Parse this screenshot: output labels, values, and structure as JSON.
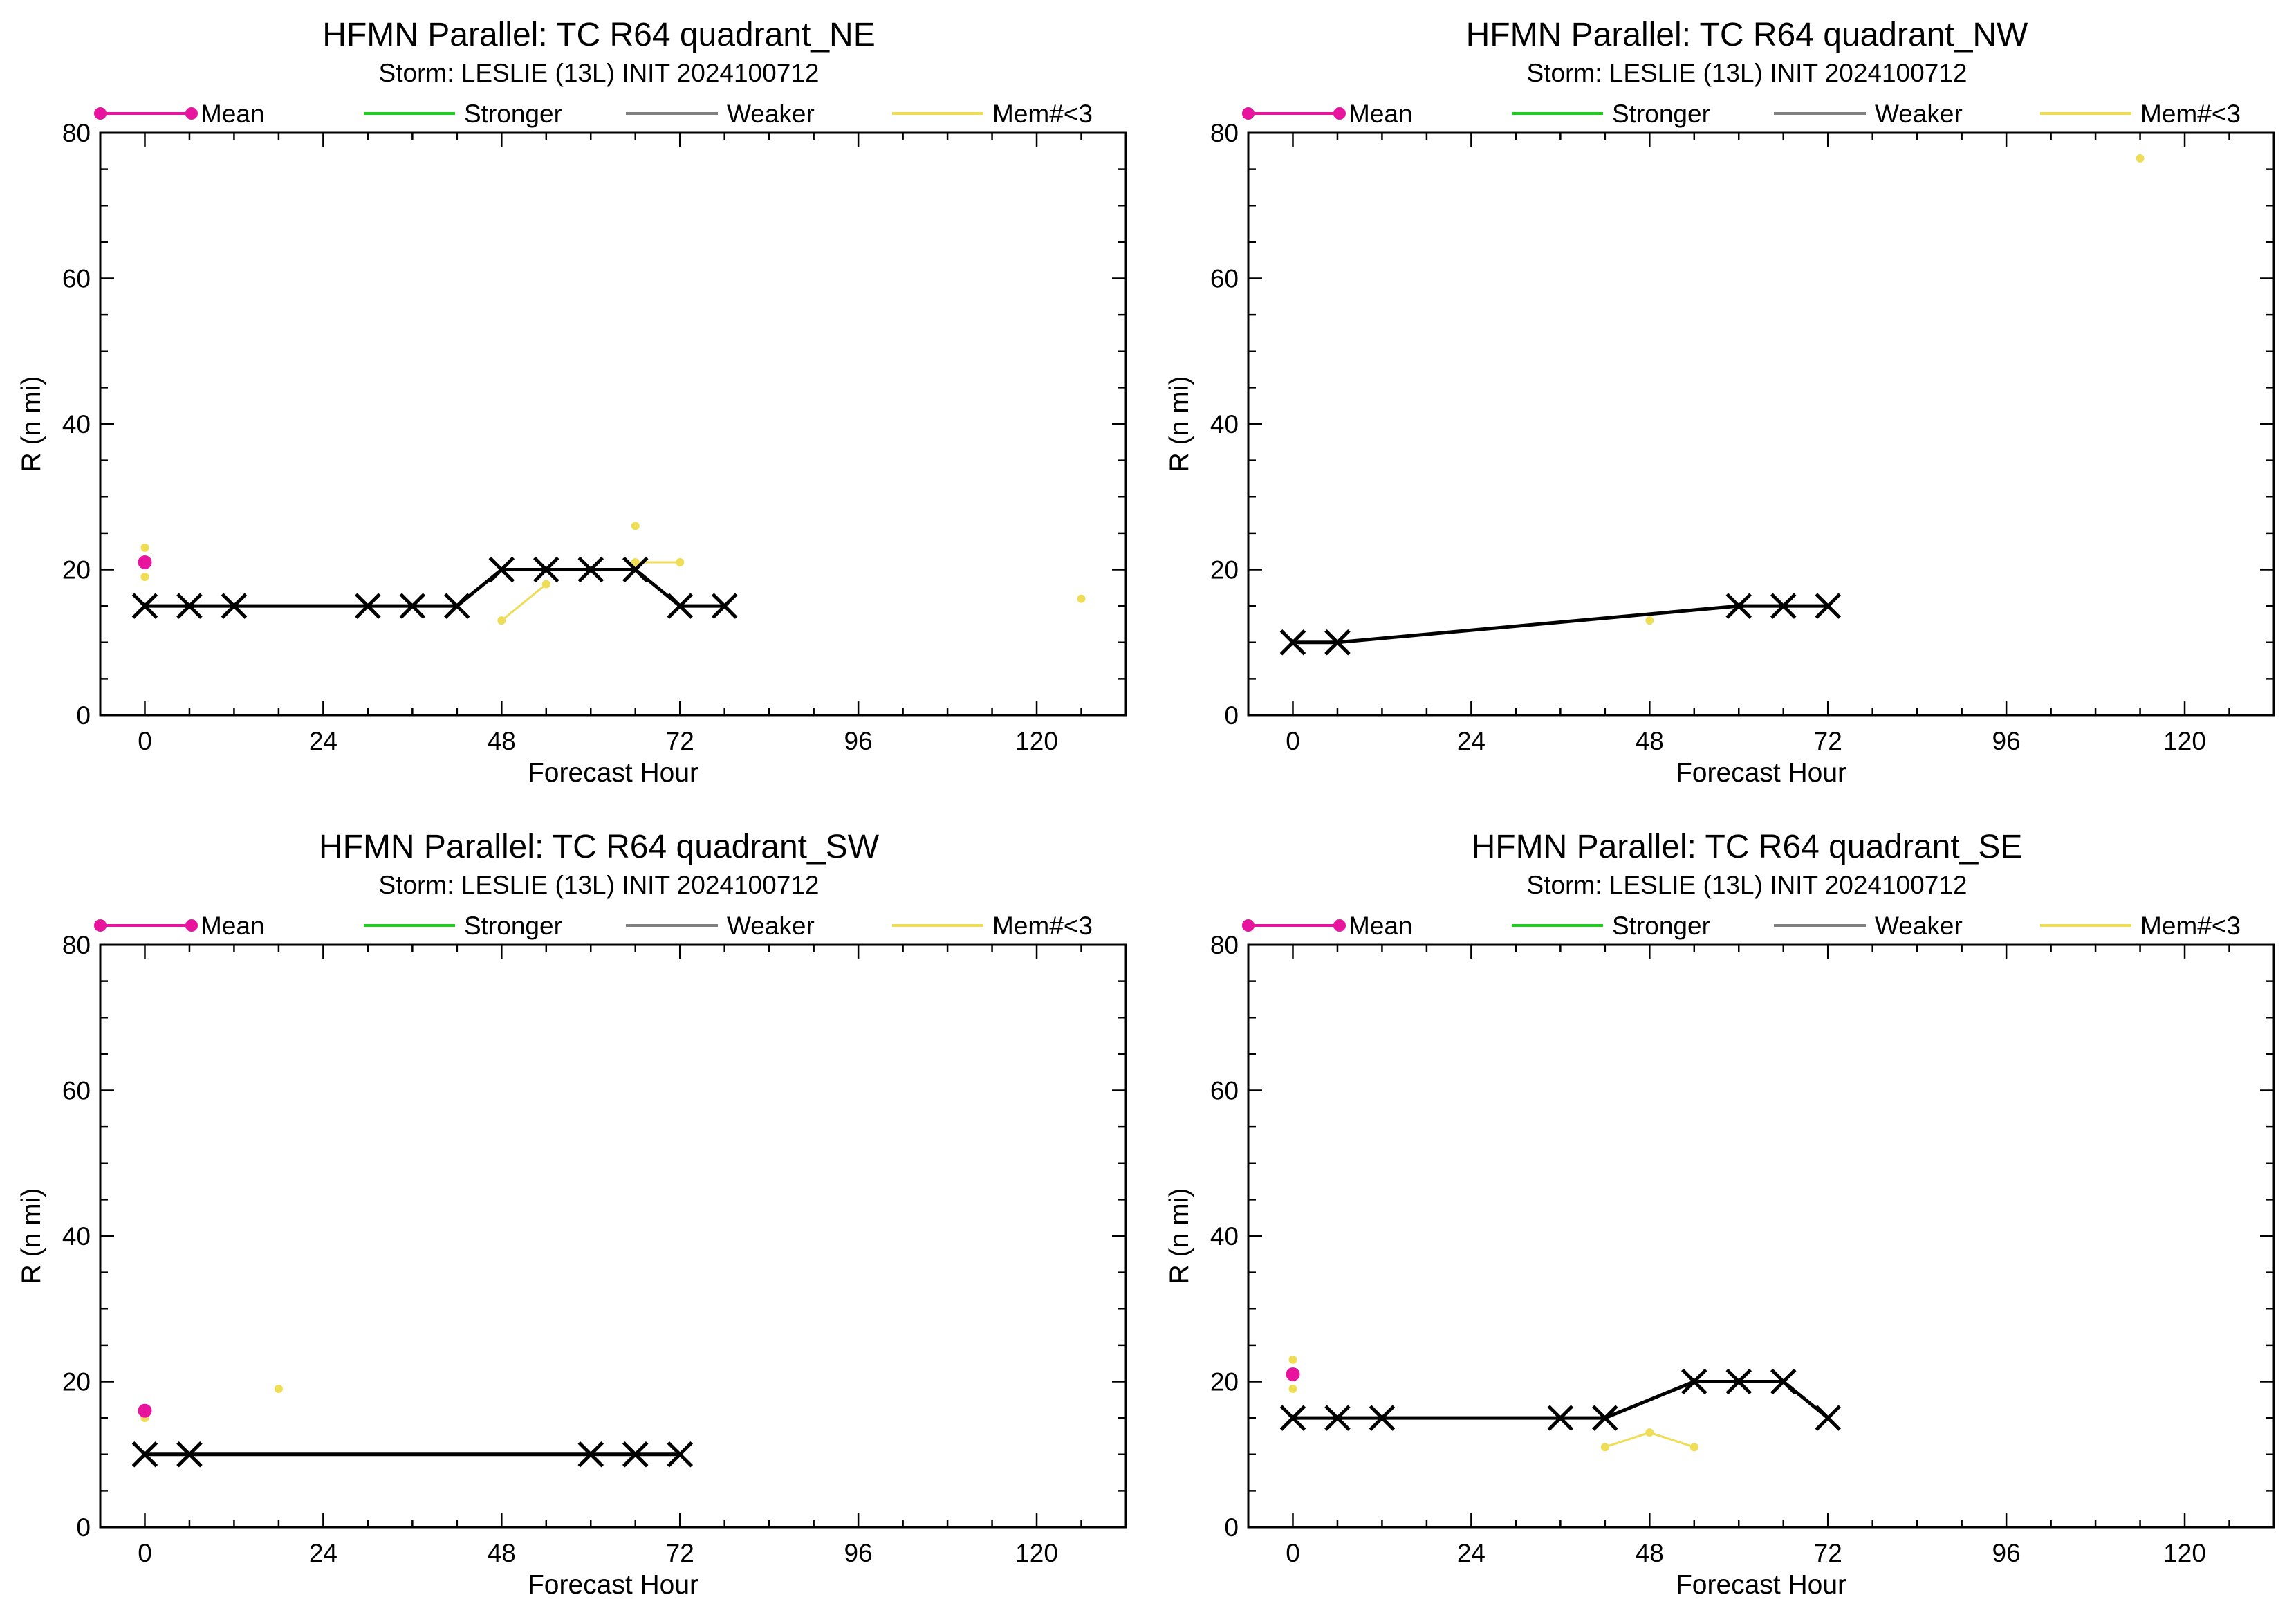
{
  "colors": {
    "mean": "#E8149E",
    "stronger": "#22CC22",
    "weaker": "#808080",
    "few_members": "#EEDD55",
    "ensemble": "#000000"
  },
  "legend": [
    "Mean",
    "Stronger",
    "Weaker",
    "Mem#<3"
  ],
  "chart_data": [
    {
      "type": "line",
      "title": "HFMN Parallel: TC  R64 quadrant_NE",
      "subtitle": "Storm: LESLIE (13L) INIT 2024100712",
      "xlabel": "Forecast Hour",
      "ylabel": "R (n mi)",
      "xlim": [
        -6,
        132
      ],
      "ylim": [
        0,
        80
      ],
      "xticks": [
        0,
        24,
        48,
        72,
        96,
        120
      ],
      "yticks": [
        0,
        20,
        40,
        60,
        80
      ],
      "series": [
        {
          "role": "ensemble",
          "marker": "x",
          "x": [
            0,
            6,
            12,
            30,
            36,
            42,
            48,
            54,
            60,
            66,
            72,
            78
          ],
          "y": [
            15,
            15,
            15,
            15,
            15,
            15,
            20,
            20,
            20,
            20,
            15,
            15
          ]
        },
        {
          "role": "mean",
          "marker": "dot",
          "x": [
            0
          ],
          "y": [
            21
          ]
        },
        {
          "role": "few_members",
          "marker": "dot",
          "x": [
            0
          ],
          "y": [
            23
          ]
        },
        {
          "role": "few_members",
          "marker": "dot",
          "x": [
            0
          ],
          "y": [
            19
          ]
        },
        {
          "role": "few_members",
          "marker": "dot",
          "x": [
            48,
            54
          ],
          "y": [
            13,
            18
          ]
        },
        {
          "role": "few_members",
          "marker": "dot",
          "x": [
            66
          ],
          "y": [
            26
          ]
        },
        {
          "role": "few_members",
          "marker": "dot",
          "x": [
            66,
            72
          ],
          "y": [
            21,
            21
          ]
        },
        {
          "role": "few_members",
          "marker": "dot",
          "x": [
            126
          ],
          "y": [
            16
          ]
        }
      ]
    },
    {
      "type": "line",
      "title": "HFMN Parallel: TC  R64 quadrant_NW",
      "subtitle": "Storm: LESLIE (13L) INIT 2024100712",
      "xlabel": "Forecast Hour",
      "ylabel": "R (n mi)",
      "xlim": [
        -6,
        132
      ],
      "ylim": [
        0,
        80
      ],
      "xticks": [
        0,
        24,
        48,
        72,
        96,
        120
      ],
      "yticks": [
        0,
        20,
        40,
        60,
        80
      ],
      "series": [
        {
          "role": "ensemble",
          "marker": "x",
          "x": [
            0,
            6,
            60,
            66,
            72
          ],
          "y": [
            10,
            10,
            15,
            15,
            15
          ]
        },
        {
          "role": "few_members",
          "marker": "dot",
          "x": [
            48
          ],
          "y": [
            13
          ]
        },
        {
          "role": "few_members",
          "marker": "dot",
          "x": [
            114
          ],
          "y": [
            76.5
          ]
        }
      ]
    },
    {
      "type": "line",
      "title": "HFMN Parallel: TC  R64 quadrant_SW",
      "subtitle": "Storm: LESLIE (13L) INIT 2024100712",
      "xlabel": "Forecast Hour",
      "ylabel": "R (n mi)",
      "xlim": [
        -6,
        132
      ],
      "ylim": [
        0,
        80
      ],
      "xticks": [
        0,
        24,
        48,
        72,
        96,
        120
      ],
      "yticks": [
        0,
        20,
        40,
        60,
        80
      ],
      "series": [
        {
          "role": "ensemble",
          "marker": "x",
          "x": [
            0,
            6,
            60,
            66,
            72
          ],
          "y": [
            10,
            10,
            10,
            10,
            10
          ]
        },
        {
          "role": "mean",
          "marker": "dot",
          "x": [
            0
          ],
          "y": [
            16
          ]
        },
        {
          "role": "few_members",
          "marker": "dot",
          "x": [
            0
          ],
          "y": [
            15
          ]
        },
        {
          "role": "few_members",
          "marker": "dot",
          "x": [
            18
          ],
          "y": [
            19
          ]
        }
      ]
    },
    {
      "type": "line",
      "title": "HFMN Parallel: TC  R64 quadrant_SE",
      "subtitle": "Storm: LESLIE (13L) INIT 2024100712",
      "xlabel": "Forecast Hour",
      "ylabel": "R (n mi)",
      "xlim": [
        -6,
        132
      ],
      "ylim": [
        0,
        80
      ],
      "xticks": [
        0,
        24,
        48,
        72,
        96,
        120
      ],
      "yticks": [
        0,
        20,
        40,
        60,
        80
      ],
      "series": [
        {
          "role": "ensemble",
          "marker": "x",
          "x": [
            0,
            6,
            12,
            36,
            42,
            54,
            60,
            66,
            72
          ],
          "y": [
            15,
            15,
            15,
            15,
            15,
            20,
            20,
            20,
            15
          ]
        },
        {
          "role": "mean",
          "marker": "dot",
          "x": [
            0
          ],
          "y": [
            21
          ]
        },
        {
          "role": "few_members",
          "marker": "dot",
          "x": [
            0
          ],
          "y": [
            23
          ]
        },
        {
          "role": "few_members",
          "marker": "dot",
          "x": [
            0
          ],
          "y": [
            19
          ]
        },
        {
          "role": "few_members",
          "marker": "dot",
          "x": [
            42,
            48,
            54
          ],
          "y": [
            11,
            13,
            11
          ]
        }
      ]
    }
  ]
}
